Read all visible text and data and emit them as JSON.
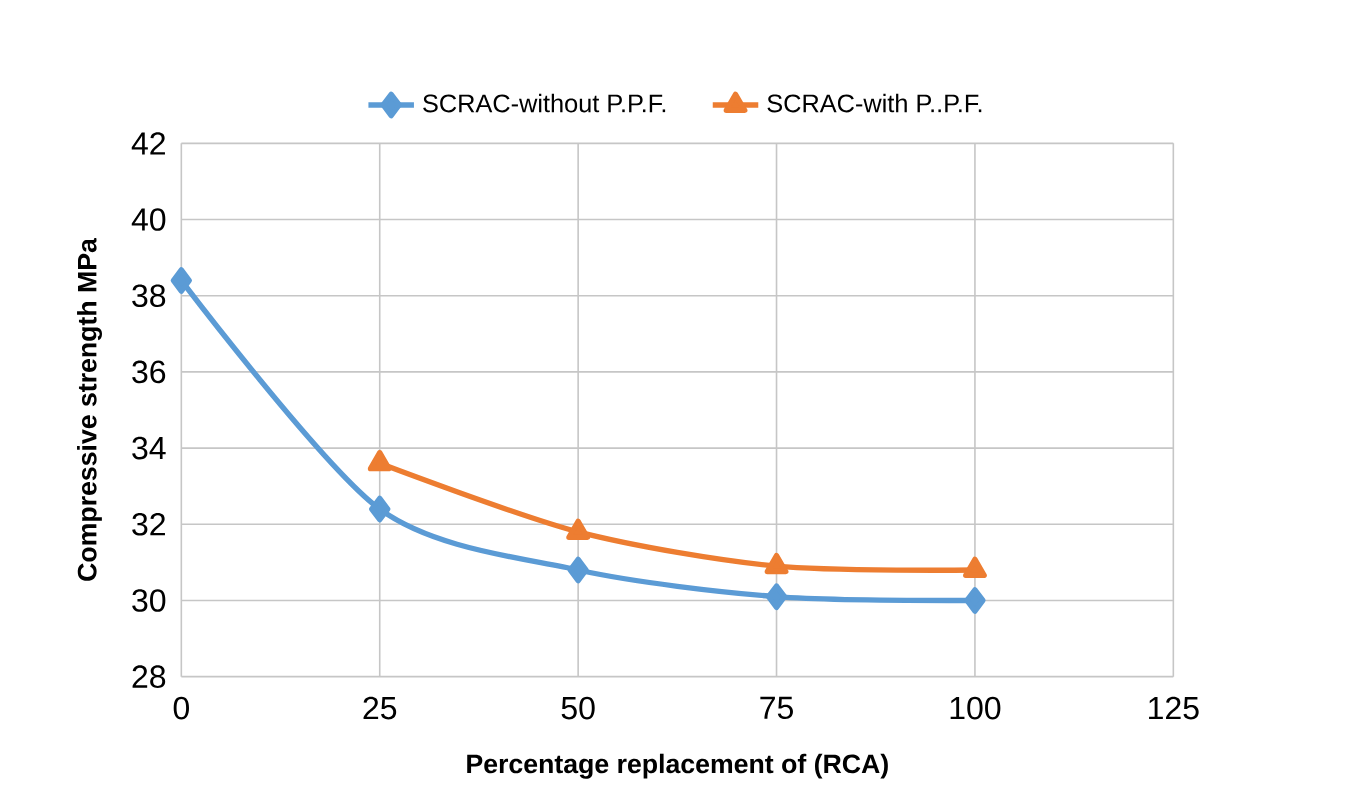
{
  "chart_data": {
    "type": "line",
    "xlabel": "Percentage replacement of (RCA)",
    "ylabel": "Compressive strength MPa",
    "x": [
      0,
      25,
      50,
      75,
      100
    ],
    "series": [
      {
        "name": "SCRAC-without P.P.F.",
        "color": "#5b9bd5",
        "marker": "diamond",
        "values": [
          38.4,
          32.4,
          30.8,
          30.1,
          30.0
        ]
      },
      {
        "name": "SCRAC-with P..P.F.",
        "color": "#ed7d31",
        "marker": "triangle",
        "values": [
          null,
          33.6,
          31.8,
          30.9,
          30.8
        ]
      }
    ],
    "xlim": [
      0,
      125
    ],
    "xticks": [
      0,
      25,
      50,
      75,
      100,
      125
    ],
    "ylim": [
      28,
      42
    ],
    "yticks": [
      28,
      30,
      32,
      34,
      36,
      38,
      40,
      42
    ],
    "grid": true,
    "legend": "top",
    "line_style": "solid"
  }
}
